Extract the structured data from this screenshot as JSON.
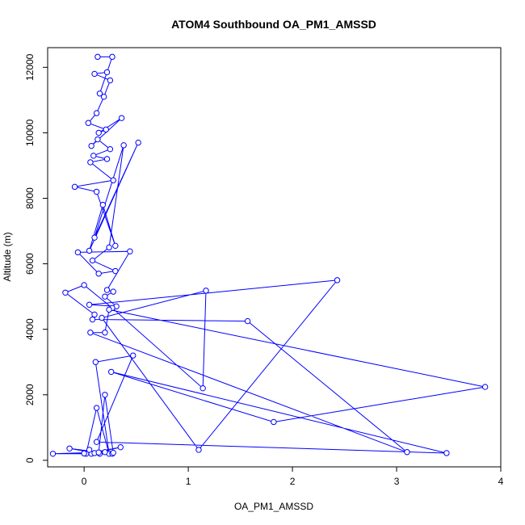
{
  "chart_data": {
    "type": "line",
    "title": "ATOM4 Southbound OA_PM1_AMSSD",
    "xlabel": "OA_PM1_AMSSD",
    "ylabel": "Altitude (m)",
    "xlim": [
      -0.35,
      4.0
    ],
    "ylim": [
      -200,
      12600
    ],
    "x_ticks": [
      "0",
      "1",
      "2",
      "3",
      "4"
    ],
    "y_ticks": [
      "0",
      "2000",
      "4000",
      "6000",
      "8000",
      "10000",
      "12000"
    ],
    "grid": false,
    "legend": "none",
    "marker": "open-circle",
    "line_color": "#0000ff",
    "series": [
      {
        "x": [
          0.13,
          0.27,
          0.15,
          0.22,
          0.1,
          0.25,
          0.19,
          0.12,
          0.04,
          0.21,
          0.14,
          0.36,
          0.07,
          0.13,
          0.25,
          0.09,
          0.22,
          0.06,
          0.28,
          -0.09,
          0.12,
          0.3,
          0.18,
          0.05,
          0.52,
          0.1,
          0.38,
          0.24,
          0.08,
          0.3,
          0.14,
          -0.06,
          0.44,
          0.22,
          0.28,
          0.2,
          0.31,
          0.05,
          2.43,
          1.1,
          0.17,
          1.17,
          1.14,
          0.27,
          0.0,
          -0.18,
          0.1,
          0.08,
          1.57,
          3.1,
          0.06,
          0.2,
          0.24,
          3.85,
          1.82,
          0.26,
          3.48,
          0.12,
          0.47,
          0.11,
          0.24,
          0.12,
          0.02,
          0.35,
          0.07,
          0.15,
          -0.14,
          0.27,
          -0.3,
          0.2,
          0.1,
          0.14,
          0.2,
          0.28,
          0.0,
          0.05
        ],
        "y": [
          12320,
          12320,
          11200,
          11850,
          11800,
          11600,
          11100,
          10600,
          10300,
          10100,
          10000,
          10450,
          9600,
          9800,
          9500,
          9300,
          9200,
          9100,
          8550,
          8350,
          8200,
          6550,
          7800,
          6400,
          9700,
          6800,
          9620,
          6500,
          6100,
          5780,
          5700,
          6350,
          6380,
          5200,
          5150,
          5000,
          4700,
          4750,
          5500,
          320,
          4350,
          5180,
          2200,
          4650,
          5350,
          5120,
          4450,
          4300,
          4250,
          250,
          3900,
          3900,
          4600,
          2240,
          1170,
          2700,
          220,
          560,
          3200,
          3000,
          200,
          1600,
          200,
          400,
          200,
          200,
          360,
          200,
          200,
          250,
          220,
          240,
          2000,
          230,
          210,
          320
        ]
      }
    ]
  }
}
